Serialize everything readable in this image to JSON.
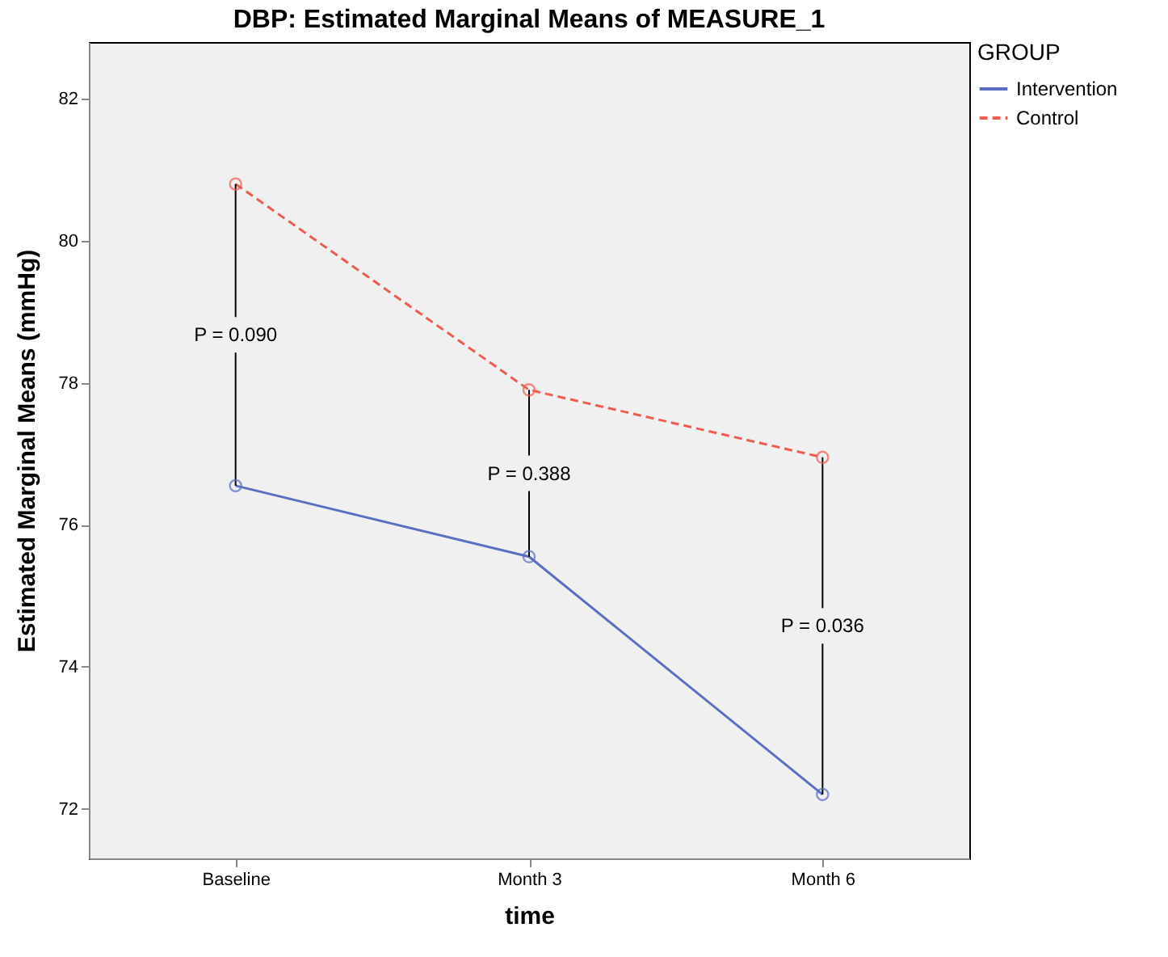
{
  "chart_data": {
    "type": "line",
    "title": "DBP: Estimated Marginal Means of MEASURE_1",
    "xlabel": "time",
    "ylabel": "Estimated Marginal Means (mmHg)",
    "legend_title": "GROUP",
    "categories": [
      "Baseline",
      "Month 3",
      "Month 6"
    ],
    "series": [
      {
        "name": "Intervention",
        "color": "#5a6fc0",
        "line_style": "solid",
        "values": [
          76.55,
          75.55,
          72.2
        ]
      },
      {
        "name": "Control",
        "color": "#f05a50",
        "line_style": "dashed",
        "values": [
          80.8,
          77.9,
          76.95
        ]
      }
    ],
    "ylim": [
      71.3,
      82.8
    ],
    "yticks": [
      72,
      74,
      76,
      78,
      80,
      82
    ],
    "marker": "circle",
    "legend": "top right",
    "grid": false,
    "annotations": [
      {
        "text": "P = 0.090",
        "x": "Baseline"
      },
      {
        "text": "P = 0.388",
        "x": "Month 3"
      },
      {
        "text": "P = 0.036",
        "x": "Month 6"
      }
    ]
  }
}
